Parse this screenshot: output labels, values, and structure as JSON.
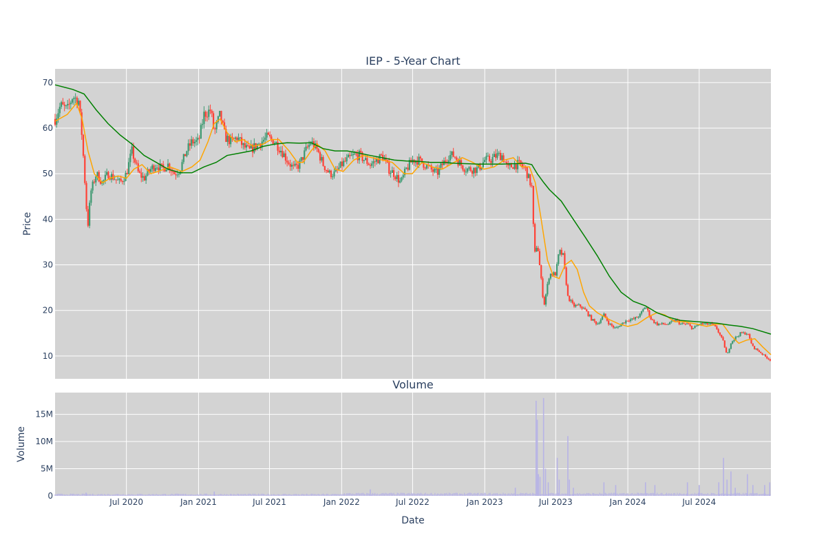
{
  "chart_data": [
    {
      "type": "candlestick",
      "title": "IEP - 5-Year Chart",
      "ylabel": "Price",
      "ylim": [
        5,
        73
      ],
      "y_ticks": [
        10,
        20,
        30,
        40,
        50,
        60,
        70
      ],
      "x_ticks": [
        "Jul 2020",
        "Jan 2021",
        "Jul 2021",
        "Jan 2022",
        "Jul 2022",
        "Jan 2023",
        "Jul 2023",
        "Jan 2024",
        "Jul 2024"
      ],
      "xlim": [
        "2020-01-01",
        "2024-12-31"
      ],
      "colors": {
        "plot_bg": "#d3d3d3",
        "up": "#3d9970",
        "down": "#ff4136",
        "ma_short": "#ffa500",
        "ma_long": "#008000"
      },
      "grid": true,
      "close_path": [
        [
          "2020-01-01",
          62
        ],
        [
          "2020-01-15",
          65
        ],
        [
          "2020-02-01",
          64
        ],
        [
          "2020-02-15",
          67
        ],
        [
          "2020-03-01",
          66
        ],
        [
          "2020-03-10",
          58
        ],
        [
          "2020-03-18",
          47
        ],
        [
          "2020-03-24",
          38
        ],
        [
          "2020-04-01",
          46
        ],
        [
          "2020-04-15",
          50
        ],
        [
          "2020-05-01",
          48
        ],
        [
          "2020-05-15",
          50
        ],
        [
          "2020-06-01",
          49
        ],
        [
          "2020-06-15",
          48
        ],
        [
          "2020-07-01",
          50
        ],
        [
          "2020-07-15",
          55
        ],
        [
          "2020-08-01",
          50
        ],
        [
          "2020-08-15",
          49
        ],
        [
          "2020-09-01",
          51
        ],
        [
          "2020-09-15",
          52
        ],
        [
          "2020-10-01",
          51
        ],
        [
          "2020-10-15",
          52
        ],
        [
          "2020-11-01",
          50
        ],
        [
          "2020-11-15",
          51
        ],
        [
          "2020-12-01",
          55
        ],
        [
          "2020-12-15",
          57
        ],
        [
          "2021-01-01",
          57
        ],
        [
          "2021-01-15",
          63
        ],
        [
          "2021-02-01",
          64
        ],
        [
          "2021-02-10",
          59
        ],
        [
          "2021-02-25",
          63
        ],
        [
          "2021-03-10",
          58
        ],
        [
          "2021-03-25",
          57
        ],
        [
          "2021-04-10",
          58
        ],
        [
          "2021-04-25",
          56
        ],
        [
          "2021-05-10",
          55
        ],
        [
          "2021-05-25",
          56
        ],
        [
          "2021-06-10",
          57
        ],
        [
          "2021-06-25",
          58
        ],
        [
          "2021-07-15",
          57
        ],
        [
          "2021-08-01",
          55
        ],
        [
          "2021-08-15",
          53
        ],
        [
          "2021-09-01",
          51
        ],
        [
          "2021-09-15",
          52
        ],
        [
          "2021-10-01",
          55
        ],
        [
          "2021-10-15",
          57
        ],
        [
          "2021-11-01",
          55
        ],
        [
          "2021-11-15",
          52
        ],
        [
          "2021-12-01",
          50
        ],
        [
          "2021-12-15",
          50
        ],
        [
          "2022-01-01",
          52
        ],
        [
          "2022-01-15",
          53
        ],
        [
          "2022-02-01",
          54
        ],
        [
          "2022-02-15",
          54
        ],
        [
          "2022-03-01",
          53
        ],
        [
          "2022-03-15",
          52
        ],
        [
          "2022-04-01",
          53
        ],
        [
          "2022-04-15",
          54
        ],
        [
          "2022-05-01",
          51
        ],
        [
          "2022-05-15",
          50
        ],
        [
          "2022-06-01",
          48
        ],
        [
          "2022-06-15",
          51
        ],
        [
          "2022-07-01",
          53
        ],
        [
          "2022-07-15",
          53
        ],
        [
          "2022-08-01",
          52
        ],
        [
          "2022-08-15",
          51
        ],
        [
          "2022-09-01",
          50
        ],
        [
          "2022-09-15",
          52
        ],
        [
          "2022-10-01",
          54
        ],
        [
          "2022-10-15",
          54
        ],
        [
          "2022-11-01",
          52
        ],
        [
          "2022-11-15",
          51
        ],
        [
          "2022-12-01",
          51
        ],
        [
          "2022-12-15",
          51
        ],
        [
          "2023-01-01",
          53
        ],
        [
          "2023-01-15",
          53
        ],
        [
          "2023-02-01",
          54
        ],
        [
          "2023-02-15",
          54
        ],
        [
          "2023-03-01",
          51
        ],
        [
          "2023-03-15",
          52
        ],
        [
          "2023-04-01",
          52
        ],
        [
          "2023-04-15",
          51
        ],
        [
          "2023-05-01",
          47
        ],
        [
          "2023-05-08",
          32
        ],
        [
          "2023-05-15",
          35
        ],
        [
          "2023-05-22",
          29
        ],
        [
          "2023-06-01",
          21
        ],
        [
          "2023-06-15",
          28
        ],
        [
          "2023-07-01",
          28
        ],
        [
          "2023-07-10",
          33
        ],
        [
          "2023-07-20",
          32
        ],
        [
          "2023-08-01",
          23
        ],
        [
          "2023-08-15",
          21
        ],
        [
          "2023-09-01",
          21
        ],
        [
          "2023-09-15",
          20
        ],
        [
          "2023-10-01",
          18
        ],
        [
          "2023-10-15",
          17
        ],
        [
          "2023-11-01",
          19
        ],
        [
          "2023-11-15",
          17
        ],
        [
          "2023-12-01",
          16
        ],
        [
          "2023-12-15",
          17
        ],
        [
          "2024-01-01",
          18
        ],
        [
          "2024-01-15",
          18
        ],
        [
          "2024-02-01",
          19
        ],
        [
          "2024-02-15",
          21
        ],
        [
          "2024-03-01",
          18
        ],
        [
          "2024-03-15",
          17
        ],
        [
          "2024-04-01",
          17
        ],
        [
          "2024-04-15",
          17
        ],
        [
          "2024-05-01",
          18
        ],
        [
          "2024-05-15",
          17
        ],
        [
          "2024-06-01",
          17
        ],
        [
          "2024-06-15",
          16
        ],
        [
          "2024-07-01",
          17
        ],
        [
          "2024-07-15",
          17
        ],
        [
          "2024-08-01",
          17
        ],
        [
          "2024-08-15",
          16
        ],
        [
          "2024-09-01",
          13
        ],
        [
          "2024-09-10",
          10
        ],
        [
          "2024-09-20",
          13
        ],
        [
          "2024-10-01",
          14
        ],
        [
          "2024-10-15",
          15
        ],
        [
          "2024-11-01",
          15
        ],
        [
          "2024-11-15",
          12
        ],
        [
          "2024-12-01",
          11
        ],
        [
          "2024-12-15",
          10
        ],
        [
          "2024-12-31",
          9
        ]
      ],
      "ma_short": [
        [
          "2020-01-01",
          61.5
        ],
        [
          "2020-02-01",
          63
        ],
        [
          "2020-02-25",
          65.5
        ],
        [
          "2020-03-10",
          62
        ],
        [
          "2020-03-25",
          55
        ],
        [
          "2020-04-10",
          50
        ],
        [
          "2020-05-01",
          48
        ],
        [
          "2020-05-20",
          49
        ],
        [
          "2020-06-10",
          49.5
        ],
        [
          "2020-07-01",
          49
        ],
        [
          "2020-07-20",
          51
        ],
        [
          "2020-08-10",
          52
        ],
        [
          "2020-09-01",
          50
        ],
        [
          "2020-09-20",
          50.5
        ],
        [
          "2020-10-20",
          51.5
        ],
        [
          "2020-11-20",
          50.5
        ],
        [
          "2020-12-15",
          51.5
        ],
        [
          "2021-01-05",
          53
        ],
        [
          "2021-01-25",
          57
        ],
        [
          "2021-02-10",
          61
        ],
        [
          "2021-02-25",
          62
        ],
        [
          "2021-03-15",
          59
        ],
        [
          "2021-04-05",
          57
        ],
        [
          "2021-04-25",
          57.5
        ],
        [
          "2021-05-20",
          56
        ],
        [
          "2021-06-15",
          56.5
        ],
        [
          "2021-07-05",
          57.5
        ],
        [
          "2021-07-25",
          57.5
        ],
        [
          "2021-08-20",
          55
        ],
        [
          "2021-09-10",
          52.5
        ],
        [
          "2021-09-25",
          52.5
        ],
        [
          "2021-10-15",
          55
        ],
        [
          "2021-10-30",
          56.5
        ],
        [
          "2021-11-20",
          55
        ],
        [
          "2021-12-15",
          51
        ],
        [
          "2022-01-05",
          50.5
        ],
        [
          "2022-02-01",
          53
        ],
        [
          "2022-02-25",
          54
        ],
        [
          "2022-03-20",
          53.5
        ],
        [
          "2022-04-15",
          53
        ],
        [
          "2022-05-10",
          52.5
        ],
        [
          "2022-06-10",
          50
        ],
        [
          "2022-06-30",
          50
        ],
        [
          "2022-07-25",
          52.5
        ],
        [
          "2022-08-20",
          51.5
        ],
        [
          "2022-09-15",
          51
        ],
        [
          "2022-10-15",
          52.5
        ],
        [
          "2022-11-05",
          53.5
        ],
        [
          "2022-12-01",
          52.5
        ],
        [
          "2022-12-30",
          51
        ],
        [
          "2023-01-25",
          51.5
        ],
        [
          "2023-02-20",
          53
        ],
        [
          "2023-03-15",
          53.5
        ],
        [
          "2023-04-05",
          51.5
        ],
        [
          "2023-04-25",
          51.5
        ],
        [
          "2023-05-10",
          48
        ],
        [
          "2023-05-25",
          40
        ],
        [
          "2023-06-10",
          31
        ],
        [
          "2023-06-25",
          27.5
        ],
        [
          "2023-07-10",
          27
        ],
        [
          "2023-07-25",
          30
        ],
        [
          "2023-08-10",
          31
        ],
        [
          "2023-08-25",
          29
        ],
        [
          "2023-09-10",
          24
        ],
        [
          "2023-09-25",
          21
        ],
        [
          "2023-10-15",
          19.5
        ],
        [
          "2023-11-15",
          18
        ],
        [
          "2023-12-10",
          17
        ],
        [
          "2024-01-01",
          16.5
        ],
        [
          "2024-01-25",
          17
        ],
        [
          "2024-02-20",
          18.5
        ],
        [
          "2024-03-15",
          19.5
        ],
        [
          "2024-04-05",
          19
        ],
        [
          "2024-04-30",
          17.5
        ],
        [
          "2024-05-25",
          17.5
        ],
        [
          "2024-06-25",
          17
        ],
        [
          "2024-07-20",
          16.5
        ],
        [
          "2024-08-15",
          17
        ],
        [
          "2024-08-30",
          17
        ],
        [
          "2024-09-20",
          14.5
        ],
        [
          "2024-10-10",
          12.8
        ],
        [
          "2024-10-30",
          13.5
        ],
        [
          "2024-11-20",
          13.8
        ],
        [
          "2024-12-10",
          12
        ],
        [
          "2024-12-31",
          10.3
        ]
      ],
      "ma_long": [
        [
          "2020-01-01",
          69.5
        ],
        [
          "2020-02-15",
          68.5
        ],
        [
          "2020-03-15",
          67.5
        ],
        [
          "2020-04-15",
          64
        ],
        [
          "2020-05-15",
          61
        ],
        [
          "2020-06-15",
          58.5
        ],
        [
          "2020-07-15",
          56.5
        ],
        [
          "2020-08-15",
          54
        ],
        [
          "2020-09-15",
          52.5
        ],
        [
          "2020-10-15",
          51
        ],
        [
          "2020-11-15",
          50.2
        ],
        [
          "2020-12-15",
          50.2
        ],
        [
          "2021-01-15",
          51.5
        ],
        [
          "2021-02-15",
          52.5
        ],
        [
          "2021-03-15",
          54
        ],
        [
          "2021-04-15",
          54.5
        ],
        [
          "2021-05-15",
          55
        ],
        [
          "2021-06-15",
          56
        ],
        [
          "2021-07-15",
          56.5
        ],
        [
          "2021-08-15",
          56.8
        ],
        [
          "2021-09-15",
          56.7
        ],
        [
          "2021-10-15",
          56.8
        ],
        [
          "2021-11-15",
          55.5
        ],
        [
          "2021-12-15",
          55
        ],
        [
          "2022-01-15",
          55
        ],
        [
          "2022-02-15",
          54.5
        ],
        [
          "2022-03-15",
          54
        ],
        [
          "2022-04-15",
          53.5
        ],
        [
          "2022-05-15",
          53
        ],
        [
          "2022-06-15",
          52.8
        ],
        [
          "2022-07-15",
          52.7
        ],
        [
          "2022-08-15",
          52.5
        ],
        [
          "2022-09-15",
          52.5
        ],
        [
          "2022-10-15",
          52.3
        ],
        [
          "2022-11-15",
          52.2
        ],
        [
          "2022-12-15",
          52.1
        ],
        [
          "2023-01-15",
          52.1
        ],
        [
          "2023-02-15",
          52.1
        ],
        [
          "2023-03-15",
          52.2
        ],
        [
          "2023-04-15",
          52.3
        ],
        [
          "2023-05-01",
          52
        ],
        [
          "2023-05-15",
          50
        ],
        [
          "2023-06-01",
          48
        ],
        [
          "2023-06-15",
          46.5
        ],
        [
          "2023-07-15",
          44
        ],
        [
          "2023-08-15",
          40
        ],
        [
          "2023-09-15",
          36
        ],
        [
          "2023-10-15",
          32
        ],
        [
          "2023-11-15",
          27.5
        ],
        [
          "2023-12-15",
          24
        ],
        [
          "2024-01-15",
          22
        ],
        [
          "2024-02-15",
          21
        ],
        [
          "2024-03-15",
          19.5
        ],
        [
          "2024-04-15",
          18.5
        ],
        [
          "2024-05-15",
          17.8
        ],
        [
          "2024-06-15",
          17.6
        ],
        [
          "2024-07-15",
          17.4
        ],
        [
          "2024-08-15",
          17.2
        ],
        [
          "2024-09-15",
          16.8
        ],
        [
          "2024-10-15",
          16.5
        ],
        [
          "2024-11-15",
          16
        ],
        [
          "2024-12-31",
          14.8
        ]
      ]
    },
    {
      "type": "bar",
      "title": "Volume",
      "xlabel": "Date",
      "ylabel": "Volume",
      "ylim": [
        0,
        19000000
      ],
      "y_ticks": [
        0,
        5000000,
        10000000,
        15000000
      ],
      "y_tick_labels": [
        "0",
        "5M",
        "10M",
        "15M"
      ],
      "x_ticks": [
        "Jul 2020",
        "Jan 2021",
        "Jul 2021",
        "Jan 2022",
        "Jul 2022",
        "Jan 2023",
        "Jul 2023",
        "Jan 2024",
        "Jul 2024"
      ],
      "colors": {
        "bar": "#b7b3e6"
      },
      "baseline": 300000,
      "spikes": [
        [
          "2020-03-20",
          600000
        ],
        [
          "2021-02-10",
          800000
        ],
        [
          "2022-03-15",
          1200000
        ],
        [
          "2023-03-20",
          1500000
        ],
        [
          "2023-05-12",
          17500000
        ],
        [
          "2023-05-15",
          14000000
        ],
        [
          "2023-05-18",
          4000000
        ],
        [
          "2023-05-22",
          3500000
        ],
        [
          "2023-05-31",
          18000000
        ],
        [
          "2023-06-05",
          5000000
        ],
        [
          "2023-06-12",
          2500000
        ],
        [
          "2023-07-05",
          7000000
        ],
        [
          "2023-07-10",
          3000000
        ],
        [
          "2023-08-01",
          11000000
        ],
        [
          "2023-08-05",
          3000000
        ],
        [
          "2023-08-15",
          1500000
        ],
        [
          "2023-11-01",
          2500000
        ],
        [
          "2023-12-01",
          2000000
        ],
        [
          "2024-02-15",
          2500000
        ],
        [
          "2024-03-10",
          2000000
        ],
        [
          "2024-06-01",
          2500000
        ],
        [
          "2024-07-01",
          2000000
        ],
        [
          "2024-08-20",
          2500000
        ],
        [
          "2024-09-01",
          7000000
        ],
        [
          "2024-09-10",
          3000000
        ],
        [
          "2024-09-20",
          4500000
        ],
        [
          "2024-10-01",
          1500000
        ],
        [
          "2024-11-01",
          4000000
        ],
        [
          "2024-11-15",
          2000000
        ],
        [
          "2024-12-15",
          2000000
        ],
        [
          "2024-12-28",
          2500000
        ]
      ]
    }
  ]
}
